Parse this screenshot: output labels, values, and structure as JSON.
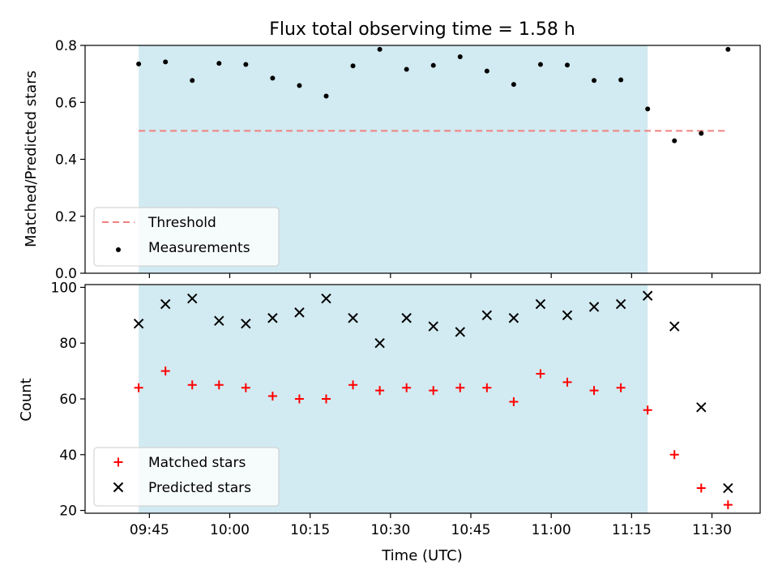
{
  "chart_data": [
    {
      "type": "scatter",
      "title": "Flux total observing time = 1.58 h",
      "xlabel": "",
      "ylabel": "Matched/Predicted stars",
      "ylim": [
        0,
        0.8
      ],
      "yticks": [
        "0.0",
        "0.2",
        "0.4",
        "0.6",
        "0.8"
      ],
      "shaded_interval": {
        "start": "09:43",
        "end": "11:18",
        "color": "#add8e6"
      },
      "threshold": {
        "name": "Threshold",
        "value": 0.5,
        "from": "09:43",
        "to": "11:33",
        "color": "#f08080"
      },
      "series": [
        {
          "name": "Measurements",
          "marker": "dot",
          "color": "#000000",
          "x": [
            "09:43",
            "09:48",
            "09:53",
            "09:58",
            "10:03",
            "10:08",
            "10:13",
            "10:18",
            "10:23",
            "10:28",
            "10:33",
            "10:38",
            "10:43",
            "10:48",
            "10:53",
            "10:58",
            "11:03",
            "11:08",
            "11:13",
            "11:18",
            "11:23",
            "11:28",
            "11:33"
          ],
          "y": [
            0.735,
            0.742,
            0.677,
            0.737,
            0.733,
            0.685,
            0.659,
            0.622,
            0.728,
            0.786,
            0.716,
            0.73,
            0.76,
            0.71,
            0.663,
            0.733,
            0.731,
            0.677,
            0.679,
            0.577,
            0.465,
            0.491,
            0.786
          ]
        }
      ],
      "legend": {
        "position": "lower-left",
        "entries": [
          "Threshold",
          "Measurements"
        ]
      }
    },
    {
      "type": "scatter",
      "title": "",
      "xlabel": "Time (UTC)",
      "ylabel": "Count",
      "ylim": [
        19,
        101
      ],
      "yticks": [
        "20",
        "40",
        "60",
        "80",
        "100"
      ],
      "xticks": [
        "09:45",
        "10:00",
        "10:15",
        "10:30",
        "10:45",
        "11:00",
        "11:15",
        "11:30"
      ],
      "shaded_interval": {
        "start": "09:43",
        "end": "11:18",
        "color": "#add8e6"
      },
      "series": [
        {
          "name": "Matched stars",
          "marker": "plus",
          "color": "#ff0000",
          "x": [
            "09:43",
            "09:48",
            "09:53",
            "09:58",
            "10:03",
            "10:08",
            "10:13",
            "10:18",
            "10:23",
            "10:28",
            "10:33",
            "10:38",
            "10:43",
            "10:48",
            "10:53",
            "10:58",
            "11:03",
            "11:08",
            "11:13",
            "11:18",
            "11:23",
            "11:28",
            "11:33"
          ],
          "y": [
            64,
            70,
            65,
            65,
            64,
            61,
            60,
            60,
            65,
            63,
            64,
            63,
            64,
            64,
            59,
            69,
            66,
            63,
            64,
            56,
            40,
            28,
            22
          ]
        },
        {
          "name": "Predicted stars",
          "marker": "x",
          "color": "#000000",
          "x": [
            "09:43",
            "09:48",
            "09:53",
            "09:58",
            "10:03",
            "10:08",
            "10:13",
            "10:18",
            "10:23",
            "10:28",
            "10:33",
            "10:38",
            "10:43",
            "10:48",
            "10:53",
            "10:58",
            "11:03",
            "11:08",
            "11:13",
            "11:18",
            "11:23",
            "11:28",
            "11:33"
          ],
          "y": [
            87,
            94,
            96,
            88,
            87,
            89,
            91,
            96,
            89,
            80,
            89,
            86,
            84,
            90,
            89,
            94,
            90,
            93,
            94,
            97,
            86,
            57,
            28
          ]
        }
      ],
      "legend": {
        "position": "lower-left",
        "entries": [
          "Matched stars",
          "Predicted stars"
        ]
      }
    }
  ]
}
